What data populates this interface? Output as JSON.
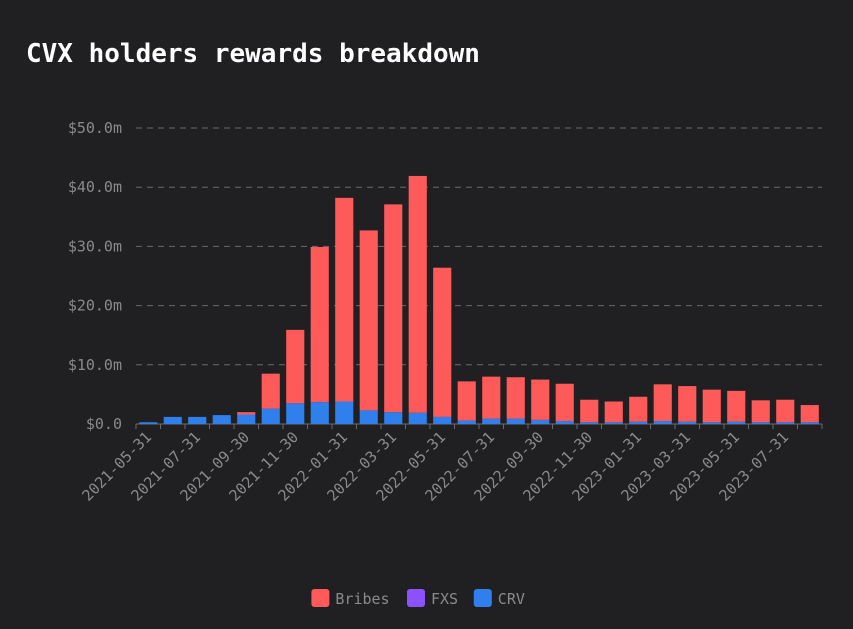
{
  "chart_data": {
    "type": "stacked-bar",
    "title": "CVX holders rewards breakdown",
    "categories": [
      "2021-05-31",
      null,
      "2021-07-31",
      null,
      "2021-09-30",
      null,
      "2021-11-30",
      null,
      "2022-01-31",
      null,
      "2022-03-31",
      null,
      "2022-05-31",
      null,
      "2022-07-31",
      null,
      "2022-09-30",
      null,
      "2022-11-30",
      null,
      "2023-01-31",
      null,
      "2023-03-31",
      null,
      "2023-05-31",
      null,
      "2023-07-31",
      null
    ],
    "series": [
      {
        "name": "Bribes",
        "color": "#ff5a5a",
        "values": [
          0,
          0,
          0,
          0,
          0.4,
          5.9,
          12.4,
          26.2,
          34.4,
          30.4,
          35.1,
          40.0,
          25.2,
          6.6,
          7.1,
          7.0,
          6.8,
          6.3,
          3.8,
          3.5,
          4.2,
          6.2,
          6.0,
          5.5,
          5.2,
          3.7,
          3.8,
          2.9
        ]
      },
      {
        "name": "FXS",
        "color": "#8c52ff",
        "values": [
          0,
          0,
          0,
          0,
          0,
          0,
          0,
          0,
          0,
          0,
          0,
          0,
          0,
          0,
          0,
          0,
          0,
          0,
          0,
          0,
          0,
          0,
          0,
          0,
          0,
          0,
          0,
          0
        ]
      },
      {
        "name": "CRV",
        "color": "#2f80ed",
        "values": [
          0.3,
          1.2,
          1.2,
          1.5,
          1.6,
          2.6,
          3.5,
          3.7,
          3.8,
          2.3,
          2.0,
          1.9,
          1.2,
          0.6,
          0.9,
          0.9,
          0.7,
          0.5,
          0.3,
          0.3,
          0.4,
          0.5,
          0.4,
          0.3,
          0.4,
          0.3,
          0.3,
          0.3
        ]
      }
    ],
    "stack_order": [
      "CRV",
      "FXS",
      "Bribes"
    ],
    "ylim": [
      0,
      50
    ],
    "yticks": [
      {
        "value": 0,
        "label": "$0.0"
      },
      {
        "value": 10,
        "label": "$10.0m"
      },
      {
        "value": 20,
        "label": "$20.0m"
      },
      {
        "value": 30,
        "label": "$30.0m"
      },
      {
        "value": 40,
        "label": "$40.0m"
      },
      {
        "value": 50,
        "label": "$50.0m"
      }
    ],
    "grid": true,
    "legend": "bottom"
  }
}
